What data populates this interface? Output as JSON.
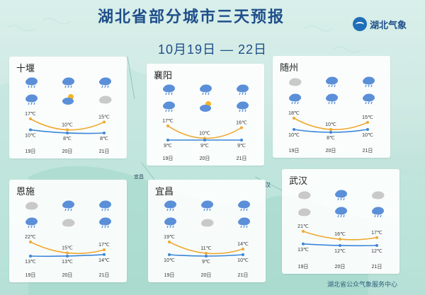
{
  "header": {
    "title": "湖北省部分城市三天预报",
    "date_range": "10月19日 — 22日",
    "logo_text": "湖北气象"
  },
  "footer": {
    "source": "湖北省公众气象服务中心"
  },
  "map_labels": {
    "yichang_map": "宜昌",
    "wuhan_map": "汉"
  },
  "colors": {
    "high_line": "#f0a830",
    "low_line": "#3a86d8",
    "title": "#1f4f8a",
    "cloud_rain": "#5b8fd8",
    "cloud_gray": "#c9c9c9",
    "sun": "#f4b428"
  },
  "cities": [
    {
      "name": "十堰",
      "icons": [
        "rain-cloud-icon",
        "rain-cloud-icon",
        "rain-cloud-icon",
        "rain-cloud-icon",
        "sun-cloud-icon",
        "cloud-icon"
      ],
      "days": [
        "19日",
        "20日",
        "21日"
      ],
      "high": [
        17,
        10,
        15
      ],
      "low": [
        10,
        8,
        8
      ],
      "high_labels": [
        "17℃",
        "10℃",
        "15℃"
      ],
      "low_labels": [
        "10℃",
        "8℃",
        "8℃"
      ]
    },
    {
      "name": "襄阳",
      "icons": [
        "rain-cloud-icon",
        "rain-cloud-icon",
        "rain-cloud-icon",
        "rain-cloud-icon",
        "sun-cloud-icon",
        "rain-cloud-icon"
      ],
      "days": [
        "19日",
        "20日",
        "21日"
      ],
      "high": [
        17,
        10,
        16
      ],
      "low": [
        9,
        9,
        9
      ],
      "high_labels": [
        "17℃",
        "10℃",
        "16℃"
      ],
      "low_labels": [
        "9℃",
        "9℃",
        "9℃"
      ]
    },
    {
      "name": "随州",
      "icons": [
        "cloud-icon",
        "rain-cloud-icon",
        "rain-cloud-icon",
        "rain-cloud-icon",
        "rain-cloud-icon",
        "rain-cloud-icon"
      ],
      "days": [
        "19日",
        "20日",
        "21日"
      ],
      "high": [
        18,
        10,
        15
      ],
      "low": [
        10,
        8,
        10
      ],
      "high_labels": [
        "18℃",
        "10℃",
        "15℃"
      ],
      "low_labels": [
        "10℃",
        "8℃",
        "10℃"
      ]
    },
    {
      "name": "恩施",
      "icons": [
        "cloud-icon",
        "rain-cloud-icon",
        "rain-cloud-icon",
        "rain-cloud-icon",
        "cloud-icon",
        "rain-cloud-icon"
      ],
      "days": [
        "19日",
        "20日",
        "21日"
      ],
      "high": [
        22,
        15,
        17
      ],
      "low": [
        13,
        13,
        14
      ],
      "high_labels": [
        "22℃",
        "15℃",
        "17℃"
      ],
      "low_labels": [
        "13℃",
        "13℃",
        "14℃"
      ]
    },
    {
      "name": "宜昌",
      "icons": [
        "rain-cloud-icon",
        "rain-cloud-icon",
        "rain-cloud-icon",
        "rain-cloud-icon",
        "cloud-icon",
        "rain-cloud-icon"
      ],
      "days": [
        "19日",
        "20日",
        "21日"
      ],
      "high": [
        19,
        11,
        14
      ],
      "low": [
        10,
        9,
        10
      ],
      "high_labels": [
        "19℃",
        "11℃",
        "14℃"
      ],
      "low_labels": [
        "10℃",
        "9℃",
        "10℃"
      ]
    },
    {
      "name": "武汉",
      "icons": [
        "cloud-icon",
        "rain-cloud-icon",
        "cloud-icon",
        "cloud-icon",
        "rain-cloud-icon",
        "rain-cloud-icon"
      ],
      "days": [
        "19日",
        "20日",
        "21日"
      ],
      "high": [
        21,
        16,
        17
      ],
      "low": [
        13,
        12,
        12
      ],
      "high_labels": [
        "21℃",
        "16℃",
        "17℃"
      ],
      "low_labels": [
        "13℃",
        "12℃",
        "12℃"
      ]
    }
  ]
}
